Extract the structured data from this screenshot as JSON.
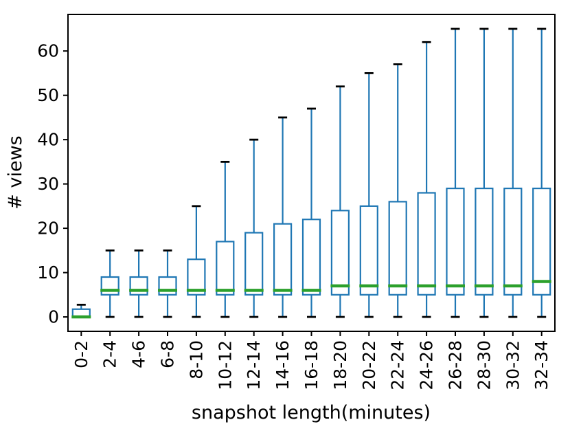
{
  "chart_data": {
    "type": "boxplot",
    "title": "",
    "xlabel": "snapshot length(minutes)",
    "ylabel": "# views",
    "categories": [
      "0-2",
      "2-4",
      "4-6",
      "6-8",
      "8-10",
      "10-12",
      "12-14",
      "14-16",
      "16-18",
      "18-20",
      "20-22",
      "22-24",
      "24-26",
      "26-28",
      "28-30",
      "30-32",
      "32-34"
    ],
    "yticks": [
      0,
      10,
      20,
      30,
      40,
      50,
      60
    ],
    "ylim": [
      -3.25,
      68.25
    ],
    "grid": false,
    "legend": "none",
    "colors": {
      "box": "#1f77b4",
      "whisker": "#1f77b4",
      "median": "#2ca02c",
      "cap": "#000000",
      "spine": "#000000",
      "background": "#ffffff"
    },
    "series": [
      {
        "label": "0-2",
        "whislo": 0,
        "q1": 0,
        "med": 0,
        "q3": 1.75,
        "whishi": 2.75
      },
      {
        "label": "2-4",
        "whislo": 0,
        "q1": 5,
        "med": 6,
        "q3": 9,
        "whishi": 15
      },
      {
        "label": "4-6",
        "whislo": 0,
        "q1": 5,
        "med": 6,
        "q3": 9,
        "whishi": 15
      },
      {
        "label": "6-8",
        "whislo": 0,
        "q1": 5,
        "med": 6,
        "q3": 9,
        "whishi": 15
      },
      {
        "label": "8-10",
        "whislo": 0,
        "q1": 5,
        "med": 6,
        "q3": 13,
        "whishi": 25
      },
      {
        "label": "10-12",
        "whislo": 0,
        "q1": 5,
        "med": 6,
        "q3": 17,
        "whishi": 35
      },
      {
        "label": "12-14",
        "whislo": 0,
        "q1": 5,
        "med": 6,
        "q3": 19,
        "whishi": 40
      },
      {
        "label": "14-16",
        "whislo": 0,
        "q1": 5,
        "med": 6,
        "q3": 21,
        "whishi": 45
      },
      {
        "label": "16-18",
        "whislo": 0,
        "q1": 5,
        "med": 6,
        "q3": 22,
        "whishi": 47
      },
      {
        "label": "18-20",
        "whislo": 0,
        "q1": 5,
        "med": 7,
        "q3": 24,
        "whishi": 52
      },
      {
        "label": "20-22",
        "whislo": 0,
        "q1": 5,
        "med": 7,
        "q3": 25,
        "whishi": 55
      },
      {
        "label": "22-24",
        "whislo": 0,
        "q1": 5,
        "med": 7,
        "q3": 26,
        "whishi": 57
      },
      {
        "label": "24-26",
        "whislo": 0,
        "q1": 5,
        "med": 7,
        "q3": 28,
        "whishi": 62
      },
      {
        "label": "26-28",
        "whislo": 0,
        "q1": 5,
        "med": 7,
        "q3": 29,
        "whishi": 65
      },
      {
        "label": "28-30",
        "whislo": 0,
        "q1": 5,
        "med": 7,
        "q3": 29,
        "whishi": 65
      },
      {
        "label": "30-32",
        "whislo": 0,
        "q1": 5,
        "med": 7,
        "q3": 29,
        "whishi": 65
      },
      {
        "label": "32-34",
        "whislo": 0,
        "q1": 5,
        "med": 8,
        "q3": 29,
        "whishi": 65
      }
    ]
  }
}
